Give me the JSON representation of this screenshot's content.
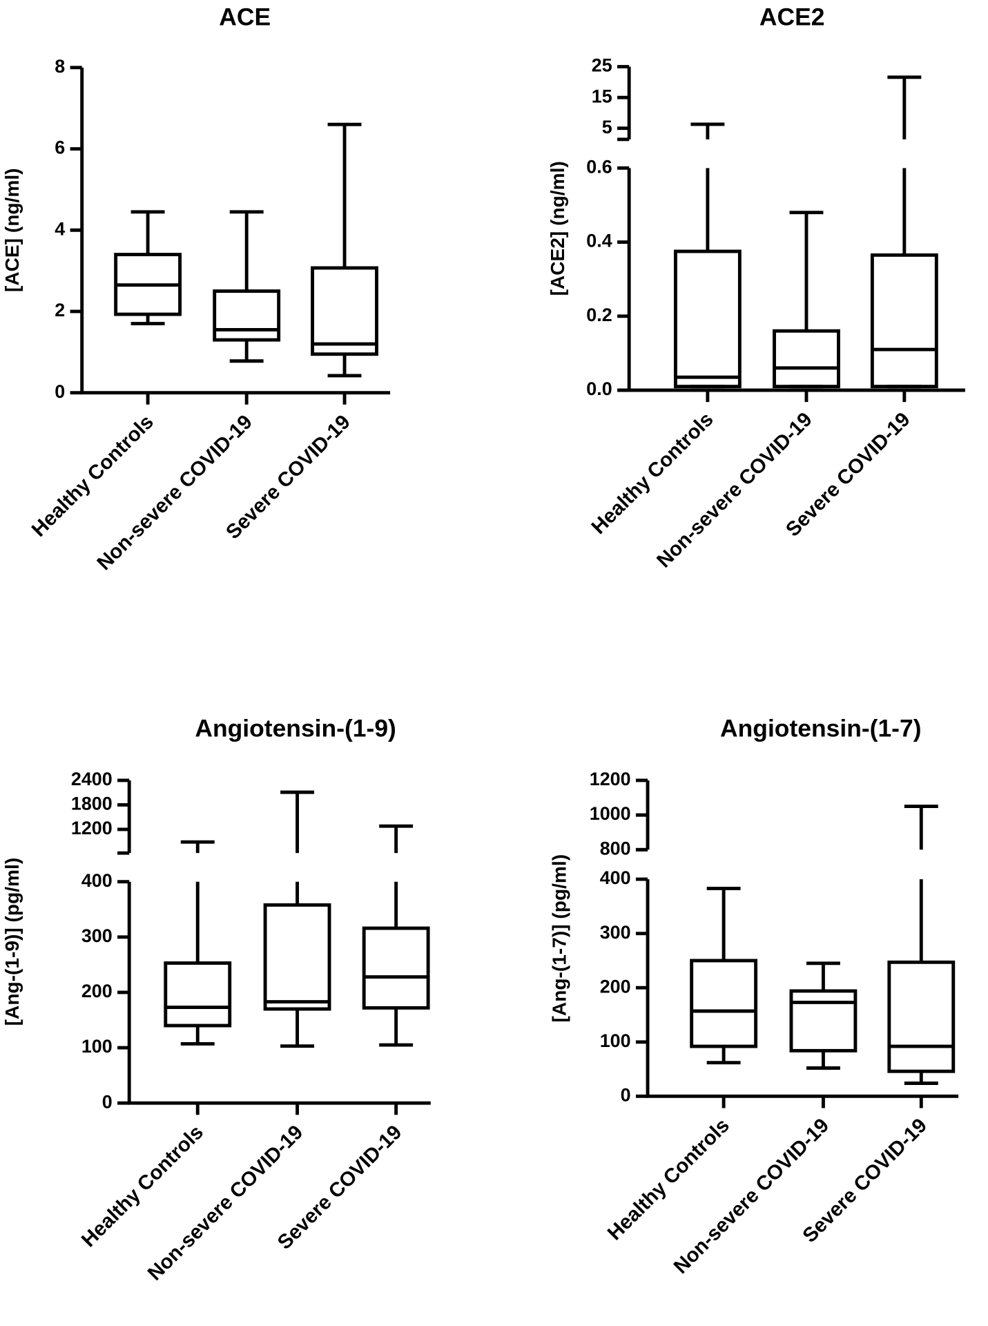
{
  "chart_data": [
    {
      "type": "box",
      "title": "ACE",
      "y_label": "[ACE] (ng/ml)",
      "categories": [
        "Healthy Controls",
        "Non-severe COVID-19",
        "Severe COVID-19"
      ],
      "min": [
        1.7,
        0.78,
        0.42
      ],
      "q1": [
        1.93,
        1.3,
        0.95
      ],
      "median": [
        2.65,
        1.55,
        1.2
      ],
      "q3": [
        3.4,
        2.5,
        3.07
      ],
      "max": [
        4.45,
        4.45,
        6.6
      ],
      "ylim": [
        0,
        8
      ],
      "yticks": [
        0,
        2,
        4,
        6,
        8
      ]
    },
    {
      "type": "box",
      "title": "ACE2",
      "y_label": "[ACE2] (ng/ml)",
      "categories": [
        "Healthy Controls",
        "Non-severe COVID-19",
        "Severe COVID-19"
      ],
      "min": [
        0.01,
        0.01,
        0.01
      ],
      "q1": [
        0.01,
        0.01,
        0.01
      ],
      "median": [
        0.035,
        0.06,
        0.11
      ],
      "q3": [
        0.375,
        0.16,
        0.365
      ],
      "max": [
        6.3,
        0.48,
        21.6
      ],
      "ylim": [
        0,
        0.6
      ],
      "yticks": [
        {
          "value": 0,
          "label": "0.0"
        },
        0.2,
        0.4,
        0.6
      ],
      "upper_axis": {
        "ylim": [
          1.4,
          25
        ],
        "yticks": [
          5,
          15,
          25
        ]
      }
    },
    {
      "type": "box",
      "title": "Angiotensin-(1-9)",
      "y_label": "[Ang-(1-9)] (pg/ml)",
      "categories": [
        "Healthy Controls",
        "Non-severe COVID-19",
        "Severe COVID-19"
      ],
      "min": [
        107,
        103,
        105
      ],
      "q1": [
        140,
        170,
        172
      ],
      "median": [
        173,
        183,
        228
      ],
      "q3": [
        253,
        358,
        316
      ],
      "max": [
        890,
        2110,
        1280
      ],
      "ylim": [
        0,
        400
      ],
      "yticks": [
        0,
        100,
        200,
        300,
        400
      ],
      "upper_axis": {
        "ylim": [
          620,
          2400
        ],
        "yticks": [
          1200,
          1800,
          2400
        ]
      }
    },
    {
      "type": "box",
      "title": "Angiotensin-(1-7)",
      "y_label": "[Ang-(1-7)] (pg/ml)",
      "categories": [
        "Healthy Controls",
        "Non-severe COVID-19",
        "Severe COVID-19"
      ],
      "min": [
        62,
        52,
        24
      ],
      "q1": [
        92,
        84,
        46
      ],
      "median": [
        157,
        173,
        92
      ],
      "q3": [
        250,
        194,
        247
      ],
      "max": [
        383,
        245,
        1050
      ],
      "ylim": [
        0,
        400
      ],
      "yticks": [
        0,
        100,
        200,
        300,
        400
      ],
      "upper_axis": {
        "ylim": [
          800,
          1200
        ],
        "yticks": [
          800,
          1000,
          1200
        ]
      }
    }
  ]
}
